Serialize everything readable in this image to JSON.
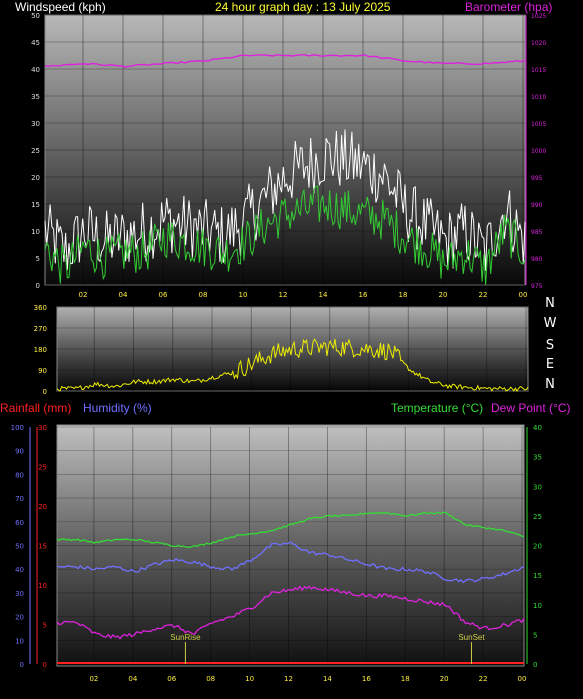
{
  "header": {
    "windspeed_label": "Windspeed (kph)",
    "title": "24 hour graph day : 13 July 2025",
    "barometer_label": "Barometer (hpa)"
  },
  "footer_labels": {
    "rainfall": "Rainfall (mm)",
    "humidity": "Humidity (%)",
    "temperature": "Temperature (°C)",
    "dewpoint": "Dew Point (°C)"
  },
  "colors": {
    "windspeed_label": "#ffffff",
    "title": "#ffff33",
    "barometer": "#dd22dd",
    "gust": "#ffffff",
    "wind": "#33cc33",
    "direction": "#eeee00",
    "rainfall": "#ff2020",
    "humidity": "#7070ff",
    "temperature": "#33dd33",
    "dewpoint": "#dd22dd",
    "sun_marker": "#cccc44"
  },
  "sun": {
    "sunrise_label": "SunRise",
    "sunset_label": "SunSet",
    "sunrise_hour": 6.6,
    "sunset_hour": 21.3
  },
  "chart_data": [
    {
      "id": "wind",
      "type": "line",
      "x_ticks": [
        "02",
        "04",
        "06",
        "08",
        "10",
        "12",
        "14",
        "16",
        "18",
        "20",
        "22",
        "00"
      ],
      "x_range_hours": [
        0,
        24
      ],
      "y_left": {
        "label": "Windspeed (kph)",
        "ticks": [
          "0",
          "5",
          "10",
          "15",
          "20",
          "25",
          "30",
          "35",
          "40",
          "45",
          "50"
        ],
        "range": [
          0,
          50
        ]
      },
      "y_right": {
        "label": "Barometer (hpa)",
        "ticks": [
          "975",
          "980",
          "985",
          "990",
          "995",
          "1000",
          "1005",
          "1010",
          "1015",
          "1020",
          "1025"
        ],
        "range": [
          975,
          1025
        ]
      },
      "series": [
        {
          "name": "gust",
          "axis": "left",
          "hours": [
            0,
            1,
            2,
            3,
            4,
            5,
            6,
            7,
            8,
            9,
            10,
            11,
            12,
            13,
            14,
            15,
            16,
            17,
            18,
            19,
            20,
            21,
            22,
            23,
            24
          ],
          "values": [
            10,
            6,
            10,
            8,
            9,
            10,
            12,
            11,
            10,
            9,
            12,
            16,
            20,
            22,
            24,
            23,
            22,
            20,
            14,
            11,
            8,
            10,
            6,
            14,
            8
          ]
        },
        {
          "name": "wind",
          "axis": "left",
          "hours": [
            0,
            1,
            2,
            3,
            4,
            5,
            6,
            7,
            8,
            9,
            10,
            11,
            12,
            13,
            14,
            15,
            16,
            17,
            18,
            19,
            20,
            21,
            22,
            23,
            24
          ],
          "values": [
            7,
            3,
            7,
            5,
            6,
            6,
            9,
            8,
            7,
            6,
            8,
            11,
            13,
            14,
            15,
            14,
            13,
            12,
            9,
            7,
            4,
            6,
            3,
            10,
            6
          ]
        },
        {
          "name": "barometer",
          "axis": "right",
          "hours": [
            0,
            2,
            4,
            6,
            8,
            10,
            12,
            14,
            16,
            18,
            20,
            22,
            24
          ],
          "values": [
            1015.5,
            1016,
            1015.5,
            1016,
            1016.5,
            1017.5,
            1017.5,
            1017.5,
            1017.5,
            1016.5,
            1016,
            1016,
            1016.5
          ]
        }
      ]
    },
    {
      "id": "direction",
      "type": "line",
      "x_range_hours": [
        0,
        24
      ],
      "y_left": {
        "ticks": [
          "0",
          "90",
          "180",
          "270",
          "360"
        ],
        "range": [
          0,
          360
        ]
      },
      "y_right_labels": [
        "N",
        "W",
        "S",
        "E",
        "N"
      ],
      "series": [
        {
          "name": "wind direction",
          "hours": [
            0,
            1,
            2,
            3,
            4,
            5,
            6,
            7,
            8,
            9,
            10,
            11,
            12,
            13,
            14,
            15,
            16,
            17,
            18,
            19,
            20,
            21,
            22,
            23,
            24
          ],
          "values": [
            10,
            10,
            30,
            20,
            40,
            40,
            50,
            40,
            60,
            80,
            120,
            160,
            180,
            185,
            190,
            185,
            180,
            170,
            90,
            40,
            20,
            15,
            10,
            10,
            10
          ]
        }
      ]
    },
    {
      "id": "temp_humidity",
      "type": "line",
      "x_ticks": [
        "02",
        "04",
        "06",
        "08",
        "10",
        "12",
        "14",
        "16",
        "18",
        "20",
        "22",
        "00"
      ],
      "x_range_hours": [
        0,
        24
      ],
      "y_humidity": {
        "label": "Humidity (%)",
        "ticks": [
          "0",
          "10",
          "20",
          "30",
          "40",
          "50",
          "60",
          "70",
          "80",
          "90",
          "100"
        ],
        "range": [
          0,
          100
        ]
      },
      "y_rain": {
        "label": "Rainfall (mm)",
        "ticks": [
          "0",
          "5",
          "10",
          "15",
          "20",
          "25",
          "30"
        ],
        "range": [
          0,
          30
        ]
      },
      "y_temp": {
        "label": "Temperature (°C)",
        "ticks": [
          "0",
          "5",
          "10",
          "15",
          "20",
          "25",
          "30",
          "35",
          "40"
        ],
        "range": [
          0,
          40
        ]
      },
      "series": [
        {
          "name": "Temperature",
          "axis": "temp",
          "hours": [
            0,
            1,
            2,
            3,
            4,
            5,
            6,
            7,
            8,
            9,
            10,
            11,
            12,
            13,
            14,
            15,
            16,
            17,
            18,
            19,
            20,
            21,
            22,
            23,
            24
          ],
          "values": [
            21,
            21,
            20.5,
            21,
            21,
            20.5,
            20,
            19.8,
            20.5,
            21.5,
            22,
            22.5,
            23.5,
            24.5,
            25,
            25,
            25.5,
            25.5,
            25,
            25.5,
            25.5,
            23.5,
            23,
            22.5,
            21.5
          ]
        },
        {
          "name": "Humidity",
          "axis": "humidity",
          "hours": [
            0,
            1,
            2,
            3,
            4,
            5,
            6,
            7,
            8,
            9,
            10,
            11,
            12,
            13,
            14,
            15,
            16,
            17,
            18,
            19,
            20,
            21,
            22,
            23,
            24
          ],
          "values": [
            41,
            41,
            40,
            41,
            39,
            42,
            44,
            43,
            41,
            40,
            44,
            50,
            51,
            47,
            46,
            44,
            42,
            40,
            40,
            39,
            36,
            35,
            36,
            38,
            41
          ]
        },
        {
          "name": "Dew Point",
          "axis": "temp",
          "hours": [
            0,
            1,
            2,
            3,
            4,
            5,
            6,
            7,
            8,
            9,
            10,
            11,
            12,
            13,
            14,
            15,
            16,
            17,
            18,
            19,
            20,
            21,
            22,
            23,
            24
          ],
          "values": [
            7,
            7,
            5,
            4.5,
            5,
            6,
            6.5,
            5,
            7,
            8,
            9.5,
            12,
            12.5,
            13,
            12.5,
            12,
            11.5,
            11.5,
            11,
            10.5,
            10,
            7,
            6,
            6.5,
            7.5
          ]
        },
        {
          "name": "Rainfall",
          "axis": "rain",
          "hours": [
            0,
            24
          ],
          "values": [
            0,
            0
          ]
        }
      ]
    }
  ]
}
